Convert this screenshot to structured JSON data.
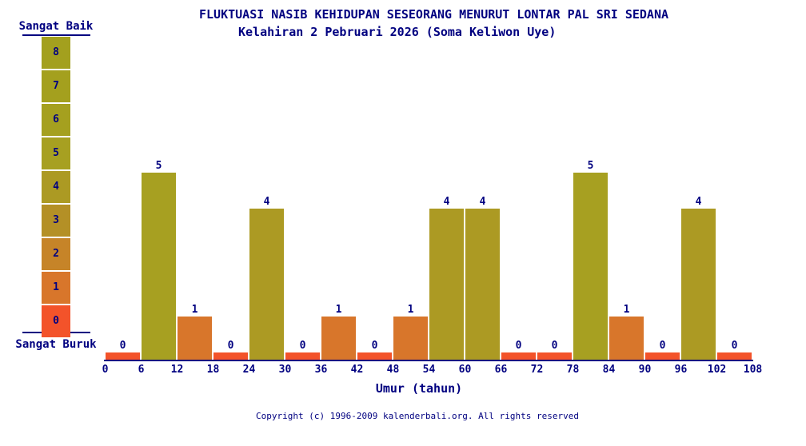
{
  "title": "FLUKTUASI NASIB KEHIDUPAN SESEORANG MENURUT LONTAR PAL SRI SEDANA",
  "subtitle": "Kelahiran 2 Pebruari 2026 (Soma Keliwon Uye)",
  "legend": {
    "top_label": "Sangat Baik",
    "bottom_label": "Sangat Buruk",
    "levels": [
      8,
      7,
      6,
      5,
      4,
      3,
      2,
      1,
      0
    ]
  },
  "chart_data": {
    "type": "bar",
    "title": "FLUKTUASI NASIB KEHIDUPAN SESEORANG MENURUT LONTAR PAL SRI SEDANA",
    "subtitle": "Kelahiran 2 Pebruari 2026 (Soma Keliwon Uye)",
    "xlabel": "Umur (tahun)",
    "ylabel": "",
    "ylim": [
      0,
      8
    ],
    "grid": false,
    "legend_position": "left",
    "x_ticks": [
      0,
      6,
      12,
      18,
      24,
      30,
      36,
      42,
      48,
      54,
      60,
      66,
      72,
      78,
      84,
      90,
      96,
      102,
      108
    ],
    "categories": [
      "0-6",
      "6-12",
      "12-18",
      "18-24",
      "24-30",
      "30-36",
      "36-42",
      "42-48",
      "48-54",
      "54-60",
      "60-66",
      "66-72",
      "72-78",
      "78-84",
      "84-90",
      "90-96",
      "96-102",
      "102-108"
    ],
    "values": [
      0,
      5,
      1,
      0,
      4,
      0,
      1,
      0,
      1,
      4,
      4,
      0,
      0,
      5,
      1,
      0,
      4,
      0
    ],
    "value_colors": {
      "0": "#f3532a",
      "1": "#d8762b",
      "2": "#c68428",
      "3": "#b49026",
      "4": "#ac9a23",
      "5": "#a7a021",
      "6": "#a5a01f",
      "7": "#a4a01e",
      "8": "#a3a01e"
    },
    "scale_best_label": "Sangat Baik",
    "scale_worst_label": "Sangat Buruk"
  },
  "footer": {
    "copyright": "Copyright (c) 1996-2009 kalenderbali.org. All rights reserved"
  },
  "colors": {
    "text": "#000080",
    "axis": "#000080",
    "background": "#ffffff"
  }
}
